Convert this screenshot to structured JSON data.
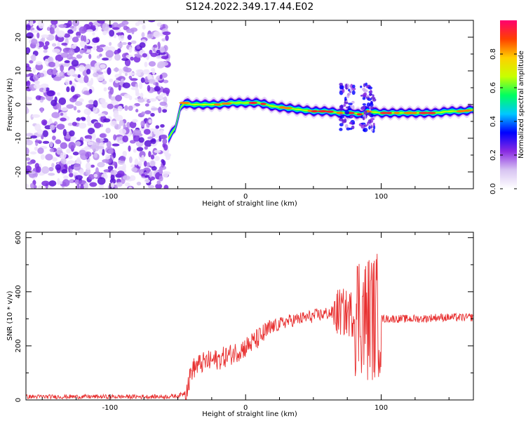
{
  "figure_title": "S124.2022.349.17.44.E02",
  "chart_data": [
    {
      "type": "heatmap",
      "title": "",
      "xlabel": "Height of straight line (km)",
      "ylabel": "Frequency (Hz)",
      "xlim": [
        -162,
        168
      ],
      "ylim": [
        -25,
        25
      ],
      "xticks": [
        -100,
        0,
        100
      ],
      "yticks": [
        -20,
        -10,
        0,
        10,
        20
      ],
      "colorbar": {
        "label": "Normalized spectral amplitude",
        "range": [
          0,
          1
        ],
        "ticks": [
          "0.0",
          "0.2",
          "0.4",
          "0.6",
          "0.8"
        ],
        "colors": [
          "#ffffff",
          "#d8c4f2",
          "#8a2be2",
          "#0000ff",
          "#00c8ff",
          "#00ff60",
          "#c8ff00",
          "#ffd000",
          "#ff4000",
          "#ff0070"
        ]
      },
      "noise_region_x": [
        -162,
        -57
      ],
      "ridge": {
        "x": [
          -57,
          -52,
          -50,
          -48,
          -45,
          -40,
          -30,
          -20,
          -10,
          0,
          10,
          20,
          30,
          40,
          50,
          60,
          70,
          80,
          85,
          90,
          100,
          110,
          120,
          130,
          140,
          150,
          160,
          168
        ],
        "y": [
          -10,
          -7,
          -4,
          -1,
          0.5,
          0,
          0,
          0,
          0.5,
          0.5,
          0.5,
          -0.5,
          -1,
          -1.5,
          -2,
          -2,
          -2.5,
          -2.5,
          -3,
          -2,
          -2.5,
          -2.5,
          -2.5,
          -2.5,
          -2.5,
          -2,
          -2,
          -1.5
        ]
      },
      "scatter_at_x": [
        75,
        90
      ],
      "scatter_y_range": [
        -8,
        6
      ]
    },
    {
      "type": "line",
      "title": "",
      "xlabel": "Height of straight line (km)",
      "ylabel": "SNR (10 * v/v)",
      "xlim": [
        -162,
        168
      ],
      "ylim": [
        0,
        620
      ],
      "xticks": [
        -100,
        0,
        100
      ],
      "yticks": [
        0,
        200,
        400,
        600
      ],
      "series": [
        {
          "color": "#e83030",
          "x": [
            -162,
            -100,
            -60,
            -50,
            -45,
            -42,
            -40,
            -35,
            -30,
            -20,
            -10,
            0,
            10,
            20,
            30,
            40,
            50,
            60,
            70,
            75,
            80,
            85,
            88,
            90,
            92,
            95,
            98,
            100,
            110,
            120,
            130,
            140,
            150,
            160,
            168
          ],
          "y": [
            12,
            12,
            12,
            15,
            25,
            60,
            110,
            130,
            140,
            150,
            170,
            195,
            230,
            270,
            290,
            300,
            310,
            320,
            325,
            320,
            320,
            330,
            300,
            300,
            320,
            300,
            320,
            300,
            300,
            300,
            300,
            305,
            305,
            305,
            305
          ],
          "noise_band": [
            {
              "x": [
                -162,
                -45
              ],
              "amplitude": 8
            },
            {
              "x": [
                -45,
                20
              ],
              "amplitude": 40
            },
            {
              "x": [
                20,
                65
              ],
              "amplitude": 25
            },
            {
              "x": [
                65,
                80
              ],
              "amplitude": 90
            },
            {
              "x": [
                80,
                100
              ],
              "amplitude": 240
            },
            {
              "x": [
                100,
                168
              ],
              "amplitude": 15
            }
          ]
        }
      ]
    }
  ]
}
